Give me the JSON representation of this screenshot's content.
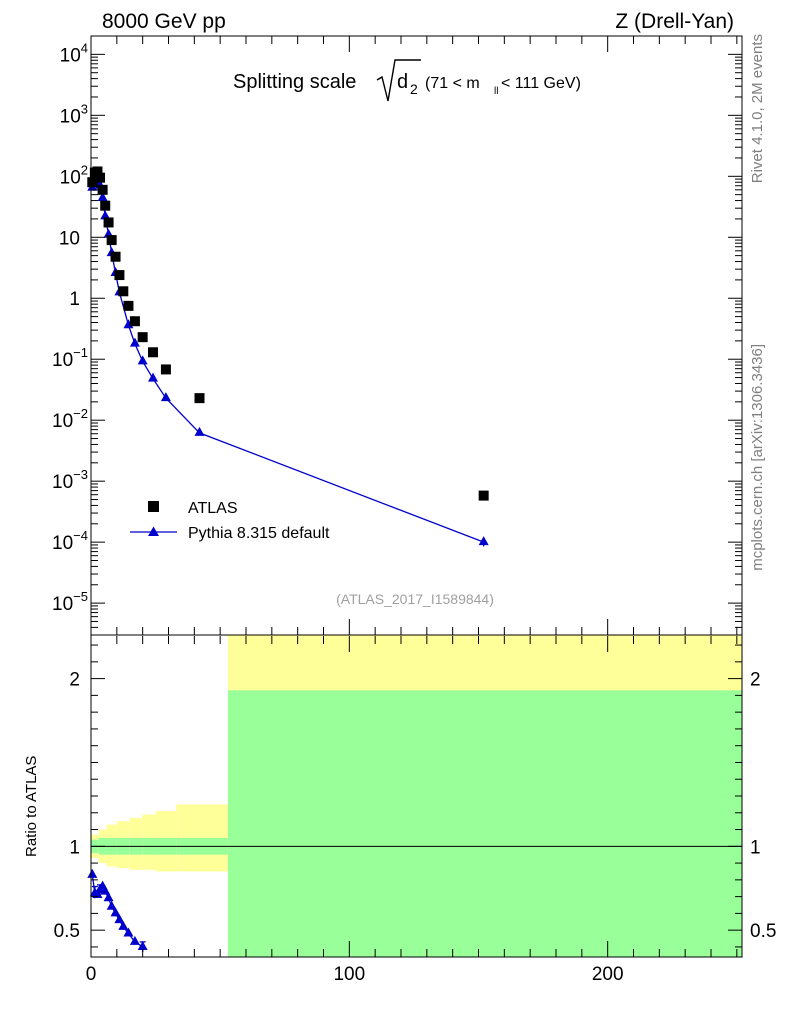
{
  "header": {
    "left": "8000 GeV pp",
    "right": "Z (Drell-Yan)"
  },
  "title": {
    "prefix": "Splitting scale",
    "radicand": "d",
    "radicand_sub": "2",
    "range_open": "(71 < m",
    "range_sub": "ll",
    "range_close": " < 111 GeV)"
  },
  "side_labels": {
    "rivet": "Rivet 4.1.0,  2M events",
    "mcplots": "mcplots.cern.ch [arXiv:1306.3436]"
  },
  "analysis_id": "(ATLAS_2017_I1589844)",
  "legend": {
    "data_label": "ATLAS",
    "mc_label": "Pythia 8.315 default"
  },
  "colors": {
    "mc": "#0000cc",
    "data": "#000000",
    "band_outer": "#ffff99",
    "band_inner": "#99ff99"
  },
  "chart_data": [
    {
      "type": "scatter",
      "panel": "main",
      "yscale": "log",
      "xlim": [
        0,
        252
      ],
      "ylim": [
        3e-06,
        20000
      ],
      "yticks": [
        {
          "value": 1e-05,
          "base": "10",
          "exp": "−5"
        },
        {
          "value": 0.0001,
          "base": "10",
          "exp": "−4"
        },
        {
          "value": 0.001,
          "base": "10",
          "exp": "−3"
        },
        {
          "value": 0.01,
          "base": "10",
          "exp": "−2"
        },
        {
          "value": 0.1,
          "base": "10",
          "exp": "−1"
        },
        {
          "value": 1,
          "base": "1",
          "exp": ""
        },
        {
          "value": 10,
          "base": "10",
          "exp": ""
        },
        {
          "value": 100,
          "base": "10",
          "exp": "2"
        },
        {
          "value": 1000,
          "base": "10",
          "exp": "3"
        },
        {
          "value": 10000,
          "base": "10",
          "exp": "4"
        }
      ],
      "series": [
        {
          "name": "ATLAS",
          "marker": "square",
          "points": [
            [
              0.5,
              80
            ],
            [
              1.5,
              115
            ],
            [
              2.5,
              120
            ],
            [
              3.5,
              95
            ],
            [
              4.5,
              60
            ],
            [
              5.5,
              33
            ],
            [
              6.8,
              17.5
            ],
            [
              8.0,
              9.0
            ],
            [
              9.5,
              4.8
            ],
            [
              11,
              2.4
            ],
            [
              12.5,
              1.3
            ],
            [
              14.5,
              0.75
            ],
            [
              17,
              0.42
            ],
            [
              20,
              0.23
            ],
            [
              24,
              0.13
            ],
            [
              29,
              0.068
            ],
            [
              42,
              0.023
            ],
            [
              152,
              0.00058
            ]
          ]
        },
        {
          "name": "Pythia 8.315 default",
          "marker": "triangle",
          "points": [
            [
              0.5,
              65
            ],
            [
              1.5,
              80
            ],
            [
              2.5,
              86
            ],
            [
              3.5,
              70
            ],
            [
              4.5,
              44
            ],
            [
              5.5,
              22
            ],
            [
              6.8,
              11
            ],
            [
              8.0,
              5.5
            ],
            [
              9.5,
              2.6
            ],
            [
              11,
              1.25
            ],
            [
              14.5,
              0.36
            ],
            [
              17,
              0.18
            ],
            [
              20,
              0.092
            ],
            [
              24,
              0.048
            ],
            [
              29,
              0.023
            ],
            [
              42,
              0.0062
            ],
            [
              152,
              0.0001
            ]
          ],
          "errors": [
            [
              152,
              8.5e-05,
              0.000118
            ]
          ]
        }
      ]
    },
    {
      "type": "line",
      "panel": "ratio",
      "ylabel": "Ratio to ATLAS",
      "xlim": [
        0,
        252
      ],
      "ylim": [
        0.34,
        2.26
      ],
      "xticks": [
        0,
        100,
        200
      ],
      "yticks": [
        0.5,
        1,
        2
      ],
      "reference_line": 1,
      "bands": {
        "edges": [
          0,
          3,
          6,
          10,
          15,
          20,
          25,
          33,
          53,
          252
        ],
        "outer": [
          [
            0.93,
            1.07
          ],
          [
            0.9,
            1.1
          ],
          [
            0.88,
            1.13
          ],
          [
            0.87,
            1.15
          ],
          [
            0.86,
            1.17
          ],
          [
            0.86,
            1.19
          ],
          [
            0.85,
            1.21
          ],
          [
            0.85,
            1.25
          ],
          [
            0.34,
            2.26
          ]
        ],
        "inner": [
          [
            0.96,
            1.04
          ],
          [
            0.95,
            1.05
          ],
          [
            0.95,
            1.05
          ],
          [
            0.95,
            1.05
          ],
          [
            0.95,
            1.05
          ],
          [
            0.95,
            1.05
          ],
          [
            0.95,
            1.05
          ],
          [
            0.95,
            1.05
          ],
          [
            0.34,
            1.93
          ]
        ]
      },
      "series": [
        {
          "name": "Pythia 8.315 default",
          "marker": "triangle",
          "points": [
            [
              0.5,
              0.83
            ],
            [
              1.5,
              0.72
            ],
            [
              2.5,
              0.71
            ],
            [
              3.5,
              0.74
            ],
            [
              4.5,
              0.76
            ],
            [
              5.5,
              0.73
            ],
            [
              6.8,
              0.69
            ],
            [
              8.0,
              0.64
            ],
            [
              9.5,
              0.6
            ],
            [
              11,
              0.56
            ],
            [
              12.5,
              0.52
            ],
            [
              14.5,
              0.48
            ],
            [
              17,
              0.43
            ],
            [
              20,
              0.4
            ]
          ],
          "errors": [
            [
              1.5,
              0.69,
              0.76
            ],
            [
              3.5,
              0.71,
              0.77
            ],
            [
              20,
              0.37,
              0.43
            ]
          ]
        }
      ]
    }
  ]
}
